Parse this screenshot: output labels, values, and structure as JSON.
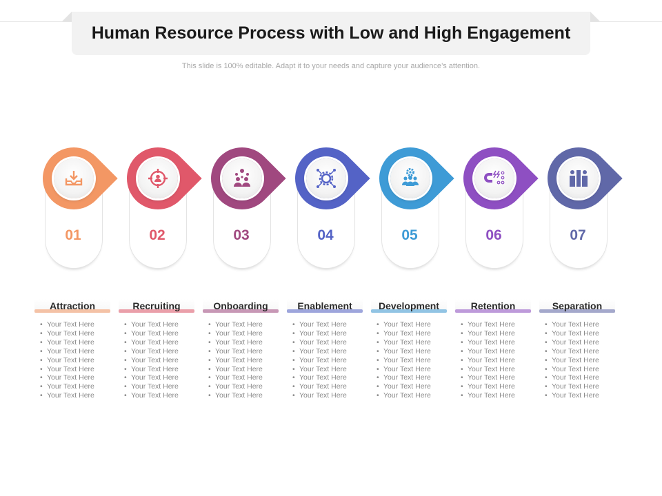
{
  "header": {
    "title": "Human Resource Process with Low and High Engagement",
    "subtitle": "This slide is 100% editable. Adapt it to your needs and capture your audience’s attention."
  },
  "steps": [
    {
      "number": "01",
      "label": "Attraction",
      "icon": "inbox-download-icon",
      "color": "#F39764",
      "bullets": [
        "Your Text Here",
        "Your Text Here",
        "Your Text Here",
        "Your Text Here",
        "Your Text Here",
        "Your Text Here",
        "Your Text Here",
        "Your Text Here",
        "Your Text Here"
      ]
    },
    {
      "number": "02",
      "label": "Recruiting",
      "icon": "target-person-icon",
      "color": "#E0586A",
      "bullets": [
        "Your Text Here",
        "Your Text Here",
        "Your Text Here",
        "Your Text Here",
        "Your Text Here",
        "Your Text Here",
        "Your Text Here",
        "Your Text Here",
        "Your Text Here"
      ]
    },
    {
      "number": "03",
      "label": "Onboarding",
      "icon": "team-network-icon",
      "color": "#A0487F",
      "bullets": [
        "Your Text Here",
        "Your Text Here",
        "Your Text Here",
        "Your Text Here",
        "Your Text Here",
        "Your Text Here",
        "Your Text Here",
        "Your Text Here",
        "Your Text Here"
      ]
    },
    {
      "number": "04",
      "label": "Enablement",
      "icon": "gear-network-icon",
      "color": "#5463C6",
      "bullets": [
        "Your Text Here",
        "Your Text Here",
        "Your Text Here",
        "Your Text Here",
        "Your Text Here",
        "Your Text Here",
        "Your Text Here",
        "Your Text Here",
        "Your Text Here"
      ]
    },
    {
      "number": "05",
      "label": "Development",
      "icon": "gear-team-icon",
      "color": "#3E9BD6",
      "bullets": [
        "Your Text Here",
        "Your Text Here",
        "Your Text Here",
        "Your Text Here",
        "Your Text Here",
        "Your Text Here",
        "Your Text Here",
        "Your Text Here",
        "Your Text Here"
      ]
    },
    {
      "number": "06",
      "label": "Retention",
      "icon": "magnet-icon",
      "color": "#8E4FC2",
      "bullets": [
        "Your Text Here",
        "Your Text Here",
        "Your Text Here",
        "Your Text Here",
        "Your Text Here",
        "Your Text Here",
        "Your Text Here",
        "Your Text Here",
        "Your Text Here"
      ]
    },
    {
      "number": "07",
      "label": "Separation",
      "icon": "people-separated-icon",
      "color": "#6068A8",
      "bullets": [
        "Your Text Here",
        "Your Text Here",
        "Your Text Here",
        "Your Text Here",
        "Your Text Here",
        "Your Text Here",
        "Your Text Here",
        "Your Text Here",
        "Your Text Here"
      ]
    }
  ]
}
